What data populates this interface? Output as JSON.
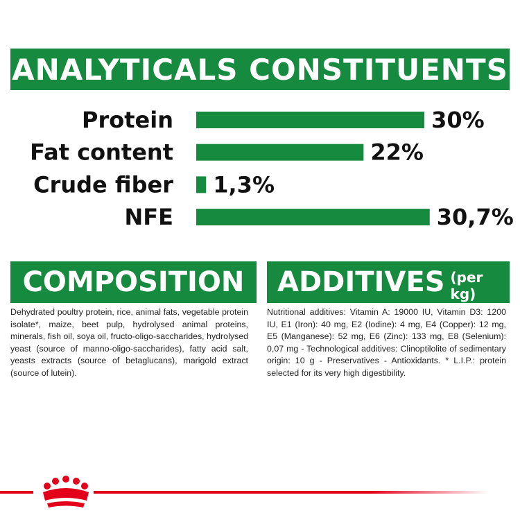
{
  "chart_data": {
    "type": "bar",
    "title": "ANALYTICALS CONSTITUENTS",
    "categories": [
      "Protein",
      "Fat content",
      "Crude fiber",
      "NFE"
    ],
    "values": [
      30,
      22,
      1.3,
      30.7
    ],
    "value_labels": [
      "30%",
      "22%",
      "1,3%",
      "30,7%"
    ],
    "color": "#168a3f"
  },
  "composition": {
    "title": "COMPOSITION",
    "text": "Dehydrated poultry protein, rice, animal fats, vegetable protein isolate*, maize, beet pulp, hydrolysed animal proteins, minerals, fish oil, soya oil, fructo-oligo-saccharides, hydrolysed yeast (source of manno-oligo-saccharides), fatty acid salt, yeasts extracts (source of betaglucans), marigold extract (source of lutein)."
  },
  "additives": {
    "title": "ADDITIVES",
    "subtitle": "(per kg)",
    "text": "Nutritional additives: Vitamin A: 19000 IU, Vitamin D3: 1200 IU, E1 (Iron): 40 mg, E2 (Iodine): 4 mg, E4 (Copper): 12 mg, E5 (Manganese): 52 mg, E6 (Zinc): 133 mg, E8 (Selenium): 0,07 mg - Technological additives: Clinoptilolite of sedimentary origin: 10 g - Preservatives - Antioxidants. * L.I.P.: protein selected for its very high digestibility."
  }
}
